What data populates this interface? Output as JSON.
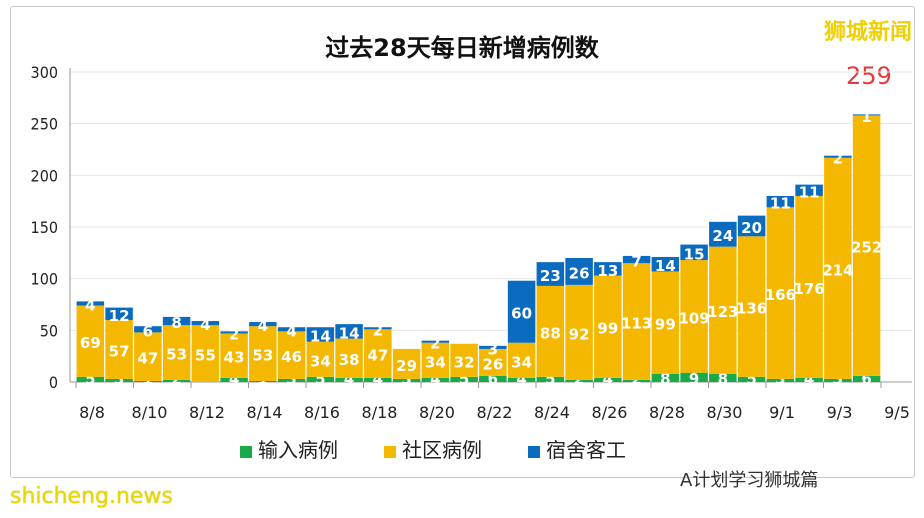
{
  "chart_data": {
    "type": "bar",
    "stacked": true,
    "title": "过去28天每日新增病例数",
    "categories": [
      "8/8",
      "8/9",
      "8/10",
      "8/11",
      "8/12",
      "8/13",
      "8/14",
      "8/15",
      "8/16",
      "8/17",
      "8/18",
      "8/19",
      "8/20",
      "8/21",
      "8/22",
      "8/23",
      "8/24",
      "8/25",
      "8/26",
      "8/27",
      "8/28",
      "8/29",
      "8/30",
      "8/31",
      "9/1",
      "9/2",
      "9/3",
      "9/4"
    ],
    "xticks": [
      "8/8",
      "8/10",
      "8/12",
      "8/14",
      "8/16",
      "8/18",
      "8/20",
      "8/22",
      "8/24",
      "8/26",
      "8/28",
      "8/30",
      "9/1",
      "9/3",
      "9/5"
    ],
    "yticks": [
      0,
      50,
      100,
      150,
      200,
      250,
      300
    ],
    "ylim": [
      0,
      300
    ],
    "grid": true,
    "legend_position": "bottom",
    "series": [
      {
        "name": "输入病例",
        "color": "#1aaa4a",
        "values": [
          5,
          3,
          1,
          2,
          0,
          4,
          1,
          3,
          5,
          4,
          4,
          3,
          4,
          5,
          6,
          4,
          5,
          2,
          4,
          2,
          8,
          9,
          8,
          5,
          3,
          4,
          3,
          6
        ]
      },
      {
        "name": "社区病例",
        "color": "#f5b800",
        "values": [
          69,
          57,
          47,
          53,
          55,
          43,
          53,
          46,
          34,
          38,
          47,
          29,
          34,
          32,
          26,
          34,
          88,
          92,
          99,
          113,
          99,
          109,
          123,
          136,
          166,
          176,
          214,
          252
        ]
      },
      {
        "name": "宿舍客工",
        "color": "#0a6bbf",
        "values": [
          4,
          12,
          6,
          8,
          4,
          2,
          4,
          4,
          14,
          14,
          2,
          0,
          2,
          0,
          3,
          60,
          23,
          26,
          13,
          7,
          14,
          15,
          24,
          20,
          11,
          11,
          2,
          1
        ]
      }
    ],
    "annotation": "259"
  },
  "watermark": "狮城新闻",
  "footer_left": "shicheng.news",
  "footer_right": "A计划学习狮城篇"
}
